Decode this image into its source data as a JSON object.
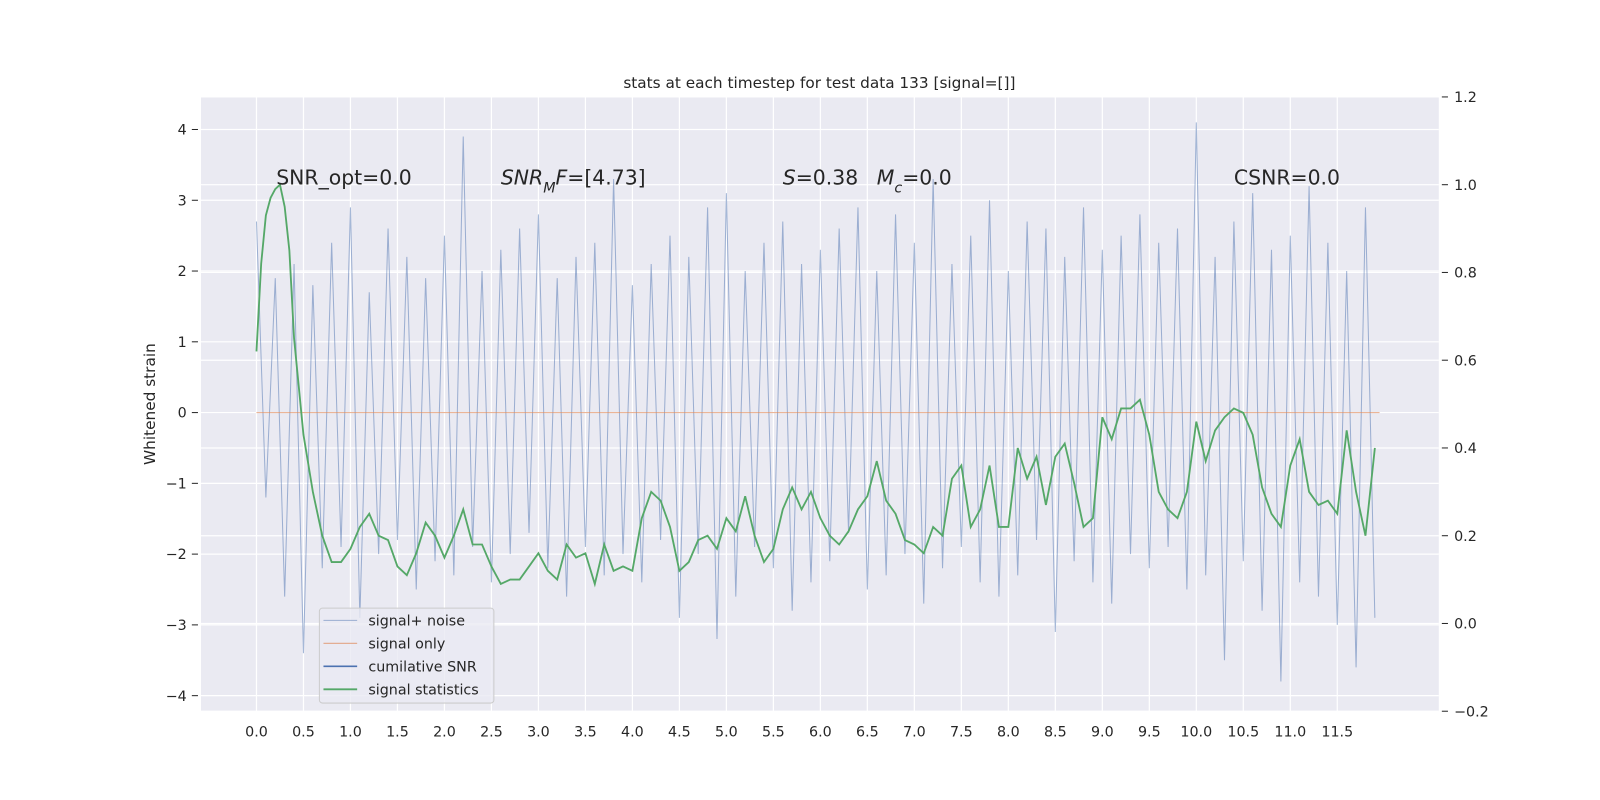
{
  "chart_data": {
    "type": "line",
    "title": "stats at each timestep for test data 133 [signal=[]]",
    "ylabel": "Whitened strain",
    "xlim": [
      -0.59,
      12.58
    ],
    "ylim": [
      -4.22,
      4.46
    ],
    "y2lim": [
      -0.2,
      1.2
    ],
    "xticks": [
      {
        "value": 0,
        "label": "0.0"
      },
      0.5,
      {
        "value": 1,
        "label": "1.0"
      },
      1.5,
      {
        "value": 2,
        "label": "2.0"
      },
      2.5,
      {
        "value": 3,
        "label": "3.0"
      },
      3.5,
      {
        "value": 4,
        "label": "4.0"
      },
      4.5,
      {
        "value": 5,
        "label": "5.0"
      },
      5.5,
      {
        "value": 6,
        "label": "6.0"
      },
      6.5,
      {
        "value": 7,
        "label": "7.0"
      },
      7.5,
      {
        "value": 8,
        "label": "8.0"
      },
      8.5,
      {
        "value": 9,
        "label": "9.0"
      },
      9.5,
      {
        "value": 10,
        "label": "10.0"
      },
      10.5,
      {
        "value": 11,
        "label": "11.0"
      },
      11.5
    ],
    "yticks": [
      {
        "value": -4,
        "label": "−4"
      },
      {
        "value": -3,
        "label": "−3"
      },
      {
        "value": -2,
        "label": "−2"
      },
      {
        "value": -1,
        "label": "−1"
      },
      0,
      1,
      2,
      3,
      4
    ],
    "y2ticks": [
      {
        "value": -0.2,
        "label": "−0.2"
      },
      {
        "value": 0,
        "label": "0.0"
      },
      0.2,
      0.4,
      0.6,
      0.8,
      {
        "value": 1,
        "label": "1.0"
      },
      1.2
    ],
    "grid": true,
    "legend": "lower left",
    "series": [
      {
        "name": "signal+ noise",
        "color": "#4c72b0",
        "x": [
          0,
          0.1,
          0.2,
          0.3,
          0.4,
          0.5,
          0.6,
          0.7,
          0.8,
          0.9,
          1,
          1.1,
          1.2,
          1.3,
          1.4,
          1.5,
          1.6,
          1.7,
          1.8,
          1.9,
          2,
          2.1,
          2.2,
          2.3,
          2.4,
          2.5,
          2.6,
          2.7,
          2.8,
          2.9,
          3,
          3.1,
          3.2,
          3.3,
          3.4,
          3.5,
          3.6,
          3.7,
          3.8,
          3.9,
          4,
          4.1,
          4.2,
          4.3,
          4.4,
          4.5,
          4.6,
          4.7,
          4.8,
          4.9,
          5,
          5.1,
          5.2,
          5.3,
          5.4,
          5.5,
          5.6,
          5.7,
          5.8,
          5.9,
          6,
          6.1,
          6.2,
          6.3,
          6.4,
          6.5,
          6.6,
          6.7,
          6.8,
          6.9,
          7,
          7.1,
          7.2,
          7.3,
          7.4,
          7.5,
          7.6,
          7.7,
          7.8,
          7.9,
          8,
          8.1,
          8.2,
          8.3,
          8.4,
          8.5,
          8.6,
          8.7,
          8.8,
          8.9,
          9,
          9.1,
          9.2,
          9.3,
          9.4,
          9.5,
          9.6,
          9.7,
          9.8,
          9.9,
          10,
          10.1,
          10.2,
          10.3,
          10.4,
          10.5,
          10.6,
          10.7,
          10.8,
          10.9,
          11,
          11.1,
          11.2,
          11.3,
          11.4,
          11.5,
          11.6,
          11.7,
          11.8,
          11.9
        ],
        "values": [
          2.7,
          -1.2,
          1.9,
          -2.6,
          2.1,
          -3.4,
          1.8,
          -2.2,
          2.4,
          -1.9,
          2.9,
          -2.9,
          1.7,
          -2.0,
          2.6,
          -1.8,
          2.2,
          -2.5,
          1.9,
          -2.1,
          2.5,
          -2.3,
          3.9,
          -1.9,
          2.0,
          -2.4,
          2.3,
          -2.0,
          2.6,
          -1.7,
          2.8,
          -2.2,
          1.9,
          -2.6,
          2.2,
          -1.9,
          2.4,
          -2.3,
          3.3,
          -2.0,
          1.8,
          -2.4,
          2.1,
          -1.8,
          2.5,
          -2.9,
          2.2,
          -2.0,
          2.9,
          -3.2,
          3.1,
          -2.6,
          2.0,
          -1.9,
          2.4,
          -2.2,
          2.7,
          -2.8,
          2.1,
          -2.4,
          2.3,
          -2.1,
          2.6,
          -1.7,
          2.9,
          -2.5,
          2.0,
          -2.3,
          2.8,
          -2.0,
          2.4,
          -2.7,
          3.3,
          -2.2,
          2.1,
          -1.9,
          2.5,
          -2.4,
          3.0,
          -2.6,
          2.0,
          -2.3,
          2.7,
          -1.8,
          2.6,
          -3.1,
          2.2,
          -2.1,
          2.9,
          -2.4,
          2.3,
          -2.7,
          2.5,
          -2.0,
          2.8,
          -2.2,
          2.4,
          -1.9,
          2.6,
          -2.5,
          4.1,
          -2.3,
          2.2,
          -3.5,
          2.7,
          -2.1,
          3.1,
          -2.8,
          2.3,
          -3.8,
          2.5,
          -2.4,
          3.2,
          -2.6,
          2.4,
          -3.0,
          2.0,
          -3.6,
          2.9,
          -2.9
        ]
      },
      {
        "name": "signal only",
        "color": "#dd8452",
        "x": [
          0,
          11.95
        ],
        "values": [
          0,
          0
        ]
      },
      {
        "name": "cumilative SNR",
        "color": "#4c72b0",
        "x": [],
        "values": []
      },
      {
        "name": "signal statistics",
        "color": "#55a868",
        "axis": "y2",
        "x": [
          0,
          0.05,
          0.1,
          0.15,
          0.2,
          0.25,
          0.3,
          0.35,
          0.4,
          0.5,
          0.6,
          0.7,
          0.8,
          0.9,
          1,
          1.1,
          1.2,
          1.3,
          1.4,
          1.5,
          1.6,
          1.7,
          1.8,
          1.9,
          2,
          2.1,
          2.2,
          2.3,
          2.4,
          2.5,
          2.6,
          2.7,
          2.8,
          2.9,
          3,
          3.1,
          3.2,
          3.3,
          3.4,
          3.5,
          3.6,
          3.7,
          3.8,
          3.9,
          4,
          4.1,
          4.2,
          4.3,
          4.4,
          4.5,
          4.6,
          4.7,
          4.8,
          4.9,
          5,
          5.1,
          5.2,
          5.3,
          5.4,
          5.5,
          5.6,
          5.7,
          5.8,
          5.9,
          6,
          6.1,
          6.2,
          6.3,
          6.4,
          6.5,
          6.6,
          6.7,
          6.8,
          6.9,
          7,
          7.1,
          7.2,
          7.3,
          7.4,
          7.5,
          7.6,
          7.7,
          7.8,
          7.9,
          8,
          8.1,
          8.2,
          8.3,
          8.4,
          8.5,
          8.6,
          8.7,
          8.8,
          8.9,
          9,
          9.1,
          9.2,
          9.3,
          9.4,
          9.5,
          9.6,
          9.7,
          9.8,
          9.9,
          10,
          10.1,
          10.2,
          10.3,
          10.4,
          10.5,
          10.6,
          10.7,
          10.8,
          10.9,
          11,
          11.1,
          11.2,
          11.3,
          11.4,
          11.5,
          11.6,
          11.7,
          11.8,
          11.9
        ],
        "values": [
          0.62,
          0.82,
          0.93,
          0.97,
          0.99,
          1.0,
          0.95,
          0.85,
          0.65,
          0.43,
          0.3,
          0.2,
          0.14,
          0.14,
          0.17,
          0.22,
          0.25,
          0.2,
          0.19,
          0.13,
          0.11,
          0.16,
          0.23,
          0.2,
          0.15,
          0.2,
          0.26,
          0.18,
          0.18,
          0.13,
          0.09,
          0.1,
          0.1,
          0.13,
          0.16,
          0.12,
          0.1,
          0.18,
          0.15,
          0.16,
          0.09,
          0.18,
          0.12,
          0.13,
          0.12,
          0.24,
          0.3,
          0.28,
          0.22,
          0.12,
          0.14,
          0.19,
          0.2,
          0.17,
          0.24,
          0.21,
          0.29,
          0.2,
          0.14,
          0.17,
          0.26,
          0.31,
          0.26,
          0.3,
          0.24,
          0.2,
          0.18,
          0.21,
          0.26,
          0.29,
          0.37,
          0.28,
          0.25,
          0.19,
          0.18,
          0.16,
          0.22,
          0.2,
          0.33,
          0.36,
          0.22,
          0.26,
          0.36,
          0.22,
          0.22,
          0.4,
          0.33,
          0.38,
          0.27,
          0.38,
          0.41,
          0.32,
          0.22,
          0.24,
          0.47,
          0.42,
          0.49,
          0.49,
          0.51,
          0.43,
          0.3,
          0.26,
          0.24,
          0.3,
          0.46,
          0.37,
          0.44,
          0.47,
          0.49,
          0.48,
          0.43,
          0.31,
          0.25,
          0.22,
          0.36,
          0.42,
          0.3,
          0.27,
          0.28,
          0.25,
          0.44,
          0.3,
          0.2,
          0.4
        ]
      }
    ],
    "annotations": [
      {
        "parts": [
          {
            "text": "SNR_opt=0.0"
          }
        ]
      },
      {
        "parts": [
          {
            "text": "SNR",
            "italic": true
          },
          {
            "text": "M",
            "italic": true,
            "sub": true
          },
          {
            "text": "F",
            "italic": true
          },
          {
            "text": "=[4.73]"
          }
        ]
      },
      {
        "parts": [
          {
            "text": "S",
            "italic": true
          },
          {
            "text": "=0.38"
          }
        ]
      },
      {
        "parts": [
          {
            "text": "M",
            "italic": true
          },
          {
            "text": "c",
            "italic": true,
            "sub": true
          },
          {
            "text": "=0.0"
          }
        ]
      },
      {
        "parts": [
          {
            "text": "CSNR=0.0"
          }
        ]
      }
    ]
  }
}
